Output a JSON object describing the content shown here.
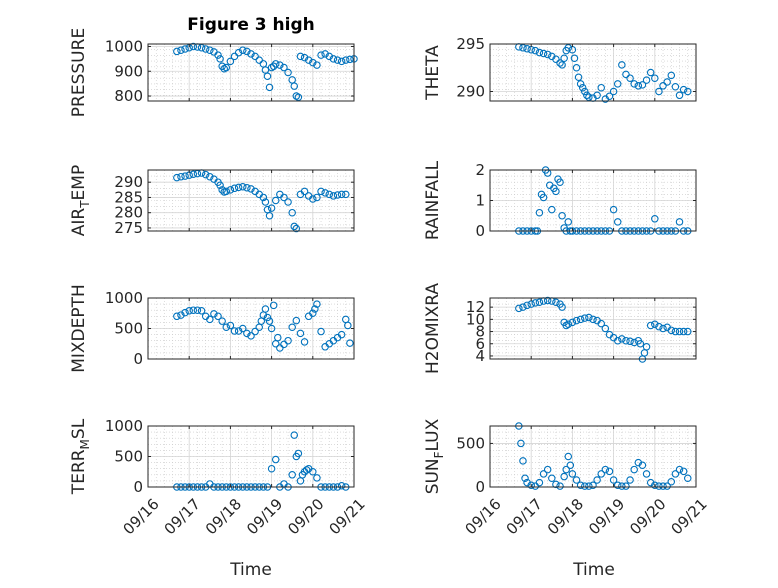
{
  "figure": {
    "title": "Figure 3 high",
    "xlabel": "Time"
  },
  "chart_data": [
    {
      "type": "scatter",
      "ylabel": "PRESSURE",
      "ylabel_sub": "",
      "ylim": [
        780,
        1010
      ],
      "yticks": [
        800,
        900,
        1000
      ],
      "ytick_labels": [
        "800",
        "900",
        "1000"
      ],
      "xlim": [
        0,
        5
      ],
      "xticks": [
        0,
        1,
        2,
        3,
        4,
        5
      ],
      "xtick_labels": [],
      "x": [
        0.7,
        0.8,
        0.9,
        1.0,
        1.1,
        1.2,
        1.3,
        1.4,
        1.5,
        1.6,
        1.7,
        1.75,
        1.8,
        1.85,
        1.9,
        2.0,
        2.1,
        2.2,
        2.3,
        2.4,
        2.5,
        2.6,
        2.7,
        2.8,
        2.85,
        2.9,
        2.95,
        3.0,
        3.05,
        3.1,
        3.2,
        3.3,
        3.4,
        3.5,
        3.55,
        3.6,
        3.65,
        3.7,
        3.8,
        3.9,
        4.0,
        4.1,
        4.2,
        4.3,
        4.4,
        4.5,
        4.6,
        4.7,
        4.8,
        4.9,
        5.0
      ],
      "y": [
        980,
        985,
        990,
        995,
        1000,
        998,
        995,
        990,
        985,
        978,
        965,
        950,
        920,
        910,
        915,
        940,
        960,
        975,
        985,
        980,
        970,
        960,
        945,
        930,
        905,
        880,
        835,
        915,
        920,
        930,
        925,
        915,
        895,
        865,
        840,
        800,
        795,
        960,
        955,
        945,
        935,
        925,
        965,
        970,
        960,
        950,
        945,
        940,
        945,
        948,
        950
      ]
    },
    {
      "type": "scatter",
      "ylabel": "THETA",
      "ylabel_sub": "",
      "ylim": [
        289,
        295
      ],
      "yticks": [
        290,
        295
      ],
      "ytick_labels": [
        "290",
        "295"
      ],
      "xlim": [
        0,
        5
      ],
      "xticks": [
        0,
        1,
        2,
        3,
        4,
        5
      ],
      "xtick_labels": [],
      "x": [
        0.7,
        0.8,
        0.9,
        1.0,
        1.1,
        1.2,
        1.3,
        1.4,
        1.5,
        1.6,
        1.7,
        1.75,
        1.8,
        1.85,
        1.9,
        2.0,
        2.05,
        2.1,
        2.15,
        2.2,
        2.25,
        2.3,
        2.35,
        2.4,
        2.5,
        2.6,
        2.7,
        2.8,
        2.9,
        3.0,
        3.1,
        3.2,
        3.3,
        3.4,
        3.5,
        3.6,
        3.7,
        3.8,
        3.9,
        4.0,
        4.1,
        4.2,
        4.3,
        4.4,
        4.5,
        4.6,
        4.7,
        4.8
      ],
      "y": [
        294.7,
        294.6,
        294.5,
        294.4,
        294.3,
        294.1,
        294.0,
        293.9,
        293.7,
        293.4,
        293.0,
        292.8,
        293.5,
        294.3,
        294.6,
        294.4,
        293.5,
        292.5,
        291.5,
        290.8,
        290.4,
        290.0,
        289.6,
        289.4,
        289.3,
        289.6,
        290.4,
        289.2,
        289.5,
        290.0,
        290.8,
        292.8,
        291.8,
        291.4,
        290.8,
        290.6,
        290.7,
        291.2,
        292.0,
        291.4,
        290.0,
        290.6,
        291.0,
        291.7,
        290.5,
        289.6,
        290.2,
        290.0
      ]
    },
    {
      "type": "scatter",
      "ylabel": "AIR",
      "ylabel_sub": "T",
      "ylabel_rest": "EMP",
      "ylim": [
        274,
        294
      ],
      "yticks": [
        275,
        280,
        285,
        290
      ],
      "ytick_labels": [
        "275",
        "280",
        "285",
        "290"
      ],
      "xlim": [
        0,
        5
      ],
      "xticks": [
        0,
        1,
        2,
        3,
        4,
        5
      ],
      "xtick_labels": [],
      "x": [
        0.7,
        0.8,
        0.9,
        1.0,
        1.1,
        1.2,
        1.3,
        1.4,
        1.5,
        1.6,
        1.7,
        1.75,
        1.8,
        1.85,
        1.9,
        2.0,
        2.1,
        2.2,
        2.3,
        2.4,
        2.5,
        2.6,
        2.7,
        2.8,
        2.85,
        2.9,
        2.95,
        3.0,
        3.1,
        3.2,
        3.3,
        3.4,
        3.5,
        3.55,
        3.6,
        3.7,
        3.8,
        3.9,
        4.0,
        4.1,
        4.2,
        4.3,
        4.4,
        4.5,
        4.6,
        4.7,
        4.8
      ],
      "y": [
        291.5,
        291.8,
        292.0,
        292.3,
        292.6,
        292.8,
        293.0,
        292.5,
        291.8,
        291.0,
        290.0,
        289.0,
        287.5,
        286.8,
        287.0,
        287.5,
        288.0,
        288.3,
        288.5,
        288.2,
        287.8,
        287.0,
        286.0,
        285.0,
        283.5,
        281.0,
        279.0,
        281.5,
        284.0,
        286.0,
        285.0,
        283.5,
        280.0,
        275.5,
        274.8,
        286.0,
        287.0,
        285.5,
        284.5,
        285.0,
        287.0,
        286.5,
        286.0,
        285.5,
        285.8,
        286.0,
        286.0
      ]
    },
    {
      "type": "scatter",
      "ylabel": "RAINFALL",
      "ylabel_sub": "",
      "ylim": [
        0,
        2
      ],
      "yticks": [
        0,
        1,
        2
      ],
      "ytick_labels": [
        "0",
        "1",
        "2"
      ],
      "xlim": [
        0,
        5
      ],
      "xticks": [
        0,
        1,
        2,
        3,
        4,
        5
      ],
      "xtick_labels": [],
      "x": [
        0.7,
        0.8,
        0.9,
        1.0,
        1.1,
        1.15,
        1.2,
        1.25,
        1.3,
        1.35,
        1.4,
        1.45,
        1.5,
        1.55,
        1.6,
        1.65,
        1.7,
        1.75,
        1.8,
        1.85,
        1.9,
        1.95,
        2.0,
        2.1,
        2.2,
        2.3,
        2.4,
        2.5,
        2.6,
        2.7,
        2.8,
        2.9,
        3.0,
        3.1,
        3.2,
        3.3,
        3.4,
        3.5,
        3.6,
        3.7,
        3.8,
        3.9,
        4.0,
        4.1,
        4.2,
        4.3,
        4.4,
        4.5,
        4.6,
        4.7,
        4.8
      ],
      "y": [
        0,
        0,
        0,
        0,
        0,
        0,
        0.6,
        1.2,
        1.1,
        2.0,
        1.9,
        1.5,
        0.7,
        1.4,
        1.3,
        1.7,
        1.6,
        0.5,
        0.1,
        0,
        0.3,
        0,
        0,
        0,
        0,
        0,
        0,
        0,
        0,
        0,
        0,
        0,
        0.7,
        0.3,
        0,
        0,
        0,
        0,
        0,
        0,
        0,
        0,
        0.4,
        0,
        0,
        0,
        0,
        0,
        0.3,
        0,
        0
      ]
    },
    {
      "type": "scatter",
      "ylabel": "MIXDEPTH",
      "ylabel_sub": "",
      "ylim": [
        0,
        1000
      ],
      "yticks": [
        0,
        500,
        1000
      ],
      "ytick_labels": [
        "0",
        "500",
        "1000"
      ],
      "xlim": [
        0,
        5
      ],
      "xticks": [
        0,
        1,
        2,
        3,
        4,
        5
      ],
      "xtick_labels": [],
      "x": [
        0.7,
        0.8,
        0.9,
        1.0,
        1.1,
        1.2,
        1.3,
        1.4,
        1.5,
        1.6,
        1.7,
        1.8,
        1.9,
        2.0,
        2.1,
        2.2,
        2.3,
        2.4,
        2.5,
        2.6,
        2.7,
        2.75,
        2.8,
        2.85,
        2.9,
        2.95,
        3.0,
        3.05,
        3.1,
        3.15,
        3.2,
        3.3,
        3.4,
        3.5,
        3.6,
        3.7,
        3.8,
        3.9,
        4.0,
        4.05,
        4.1,
        4.2,
        4.3,
        4.4,
        4.5,
        4.6,
        4.7,
        4.8,
        4.85,
        4.9
      ],
      "y": [
        700,
        720,
        760,
        790,
        800,
        800,
        790,
        700,
        650,
        740,
        700,
        620,
        520,
        550,
        460,
        460,
        500,
        420,
        380,
        450,
        520,
        620,
        720,
        820,
        680,
        620,
        500,
        880,
        250,
        350,
        180,
        240,
        300,
        520,
        630,
        420,
        280,
        700,
        750,
        820,
        900,
        450,
        200,
        250,
        300,
        350,
        400,
        650,
        550,
        260
      ]
    },
    {
      "type": "scatter",
      "ylabel": "H2OMIXRA",
      "ylabel_sub": "",
      "ylim": [
        3.5,
        13.5
      ],
      "yticks": [
        4,
        6,
        8,
        10,
        12
      ],
      "ytick_labels": [
        "4",
        "6",
        "8",
        "10",
        "12"
      ],
      "xlim": [
        0,
        5
      ],
      "xticks": [
        0,
        1,
        2,
        3,
        4,
        5
      ],
      "xtick_labels": [],
      "x": [
        0.7,
        0.8,
        0.9,
        1.0,
        1.1,
        1.2,
        1.3,
        1.4,
        1.5,
        1.6,
        1.7,
        1.75,
        1.8,
        1.85,
        1.9,
        2.0,
        2.1,
        2.2,
        2.3,
        2.4,
        2.5,
        2.6,
        2.7,
        2.8,
        2.9,
        3.0,
        3.1,
        3.2,
        3.3,
        3.4,
        3.5,
        3.6,
        3.65,
        3.7,
        3.75,
        3.8,
        3.9,
        4.0,
        4.1,
        4.2,
        4.3,
        4.4,
        4.5,
        4.6,
        4.7,
        4.8
      ],
      "y": [
        11.8,
        12.0,
        12.3,
        12.5,
        12.7,
        12.8,
        13.0,
        13.1,
        13.0,
        12.8,
        12.5,
        12.0,
        9.5,
        9.0,
        9.2,
        9.5,
        9.8,
        10.0,
        10.2,
        10.3,
        10.0,
        9.8,
        9.3,
        8.5,
        7.5,
        7.0,
        6.5,
        6.8,
        6.5,
        6.4,
        6.2,
        6.5,
        6.0,
        3.5,
        4.5,
        5.5,
        9.0,
        9.2,
        8.8,
        8.5,
        8.7,
        8.2,
        8.0,
        8.0,
        8.0,
        8.0
      ]
    },
    {
      "type": "scatter",
      "ylabel": "TERR",
      "ylabel_sub": "M",
      "ylabel_rest": "SL",
      "ylim": [
        0,
        1000
      ],
      "yticks": [
        0,
        500,
        1000
      ],
      "ytick_labels": [
        "0",
        "500",
        "1000"
      ],
      "xlim": [
        0,
        5
      ],
      "xticks": [
        0,
        1,
        2,
        3,
        4,
        5
      ],
      "xtick_labels": [
        "09/16",
        "09/17",
        "09/18",
        "09/19",
        "09/20",
        "09/21"
      ],
      "x": [
        0.7,
        0.8,
        0.9,
        1.0,
        1.1,
        1.2,
        1.3,
        1.4,
        1.5,
        1.6,
        1.7,
        1.8,
        1.9,
        2.0,
        2.1,
        2.2,
        2.3,
        2.4,
        2.5,
        2.6,
        2.7,
        2.8,
        2.9,
        3.0,
        3.1,
        3.2,
        3.3,
        3.4,
        3.5,
        3.55,
        3.6,
        3.65,
        3.7,
        3.75,
        3.8,
        3.85,
        3.9,
        4.0,
        4.1,
        4.2,
        4.3,
        4.4,
        4.5,
        4.6,
        4.7,
        4.8
      ],
      "y": [
        0,
        0,
        0,
        0,
        0,
        0,
        0,
        0,
        50,
        0,
        0,
        0,
        0,
        0,
        0,
        0,
        0,
        0,
        0,
        0,
        0,
        0,
        0,
        300,
        450,
        0,
        50,
        0,
        200,
        850,
        500,
        550,
        100,
        200,
        250,
        280,
        300,
        250,
        150,
        0,
        0,
        0,
        0,
        0,
        20,
        0
      ]
    },
    {
      "type": "scatter",
      "ylabel": "SUN",
      "ylabel_sub": "F",
      "ylabel_rest": "LUX",
      "ylim": [
        0,
        700
      ],
      "yticks": [
        0,
        500
      ],
      "ytick_labels": [
        "0",
        "500"
      ],
      "xlim": [
        0,
        5
      ],
      "xticks": [
        0,
        1,
        2,
        3,
        4,
        5
      ],
      "xtick_labels": [
        "09/16",
        "09/17",
        "09/18",
        "09/19",
        "09/20",
        "09/21"
      ],
      "x": [
        0.7,
        0.75,
        0.8,
        0.85,
        0.9,
        1.0,
        1.1,
        1.2,
        1.3,
        1.4,
        1.5,
        1.6,
        1.7,
        1.8,
        1.85,
        1.9,
        1.95,
        2.0,
        2.1,
        2.2,
        2.3,
        2.4,
        2.5,
        2.6,
        2.7,
        2.8,
        2.9,
        3.0,
        3.1,
        3.2,
        3.3,
        3.4,
        3.5,
        3.6,
        3.7,
        3.8,
        3.9,
        4.0,
        4.1,
        4.2,
        4.3,
        4.4,
        4.5,
        4.6,
        4.7,
        4.8
      ],
      "y": [
        700,
        500,
        300,
        100,
        50,
        20,
        10,
        50,
        150,
        200,
        100,
        30,
        10,
        120,
        200,
        350,
        250,
        150,
        80,
        20,
        10,
        10,
        20,
        80,
        150,
        200,
        180,
        80,
        20,
        10,
        10,
        80,
        200,
        280,
        250,
        150,
        50,
        20,
        10,
        10,
        10,
        60,
        150,
        200,
        180,
        100
      ]
    }
  ],
  "marker_color": "#0072BD"
}
